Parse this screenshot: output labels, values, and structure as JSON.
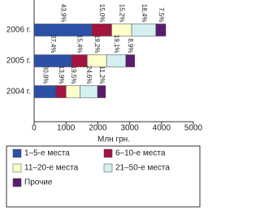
{
  "chart_data": {
    "type": "stacked_barh",
    "categories": [
      "2006 г.",
      "2005 г.",
      "2004 г."
    ],
    "series": [
      {
        "name": "1–5-е места",
        "color": "#2b50a6",
        "values": [
          1815,
          1180,
          690
        ],
        "value_labels": [
          "43,9%",
          "37,4%",
          "30,8%"
        ]
      },
      {
        "name": "6–10-е места",
        "color": "#a3143f",
        "values": [
          620,
          487,
          312
        ],
        "value_labels": [
          "15,0%",
          "15,4%",
          "13,9%"
        ]
      },
      {
        "name": "11–20-е места",
        "color": "#ffffcc",
        "values": [
          628,
          607,
          438
        ],
        "value_labels": [
          "15,2%",
          "19,2%",
          "19,5%"
        ]
      },
      {
        "name": "21–50-е места",
        "color": "#d3eff0",
        "values": [
          760,
          604,
          552
        ],
        "value_labels": [
          "18,4%",
          "19,1%",
          "24,6%"
        ]
      },
      {
        "name": "Прочие",
        "color": "#5b1c70",
        "values": [
          310,
          281,
          251
        ],
        "value_labels": [
          "7,5%",
          "8,9%",
          "11,2%"
        ]
      }
    ],
    "xlabel": "Млн грн.",
    "xlim": [
      0,
      5000
    ],
    "xticks": [
      0,
      1000,
      2000,
      3000,
      4000,
      5000
    ],
    "legend": "bottom"
  }
}
